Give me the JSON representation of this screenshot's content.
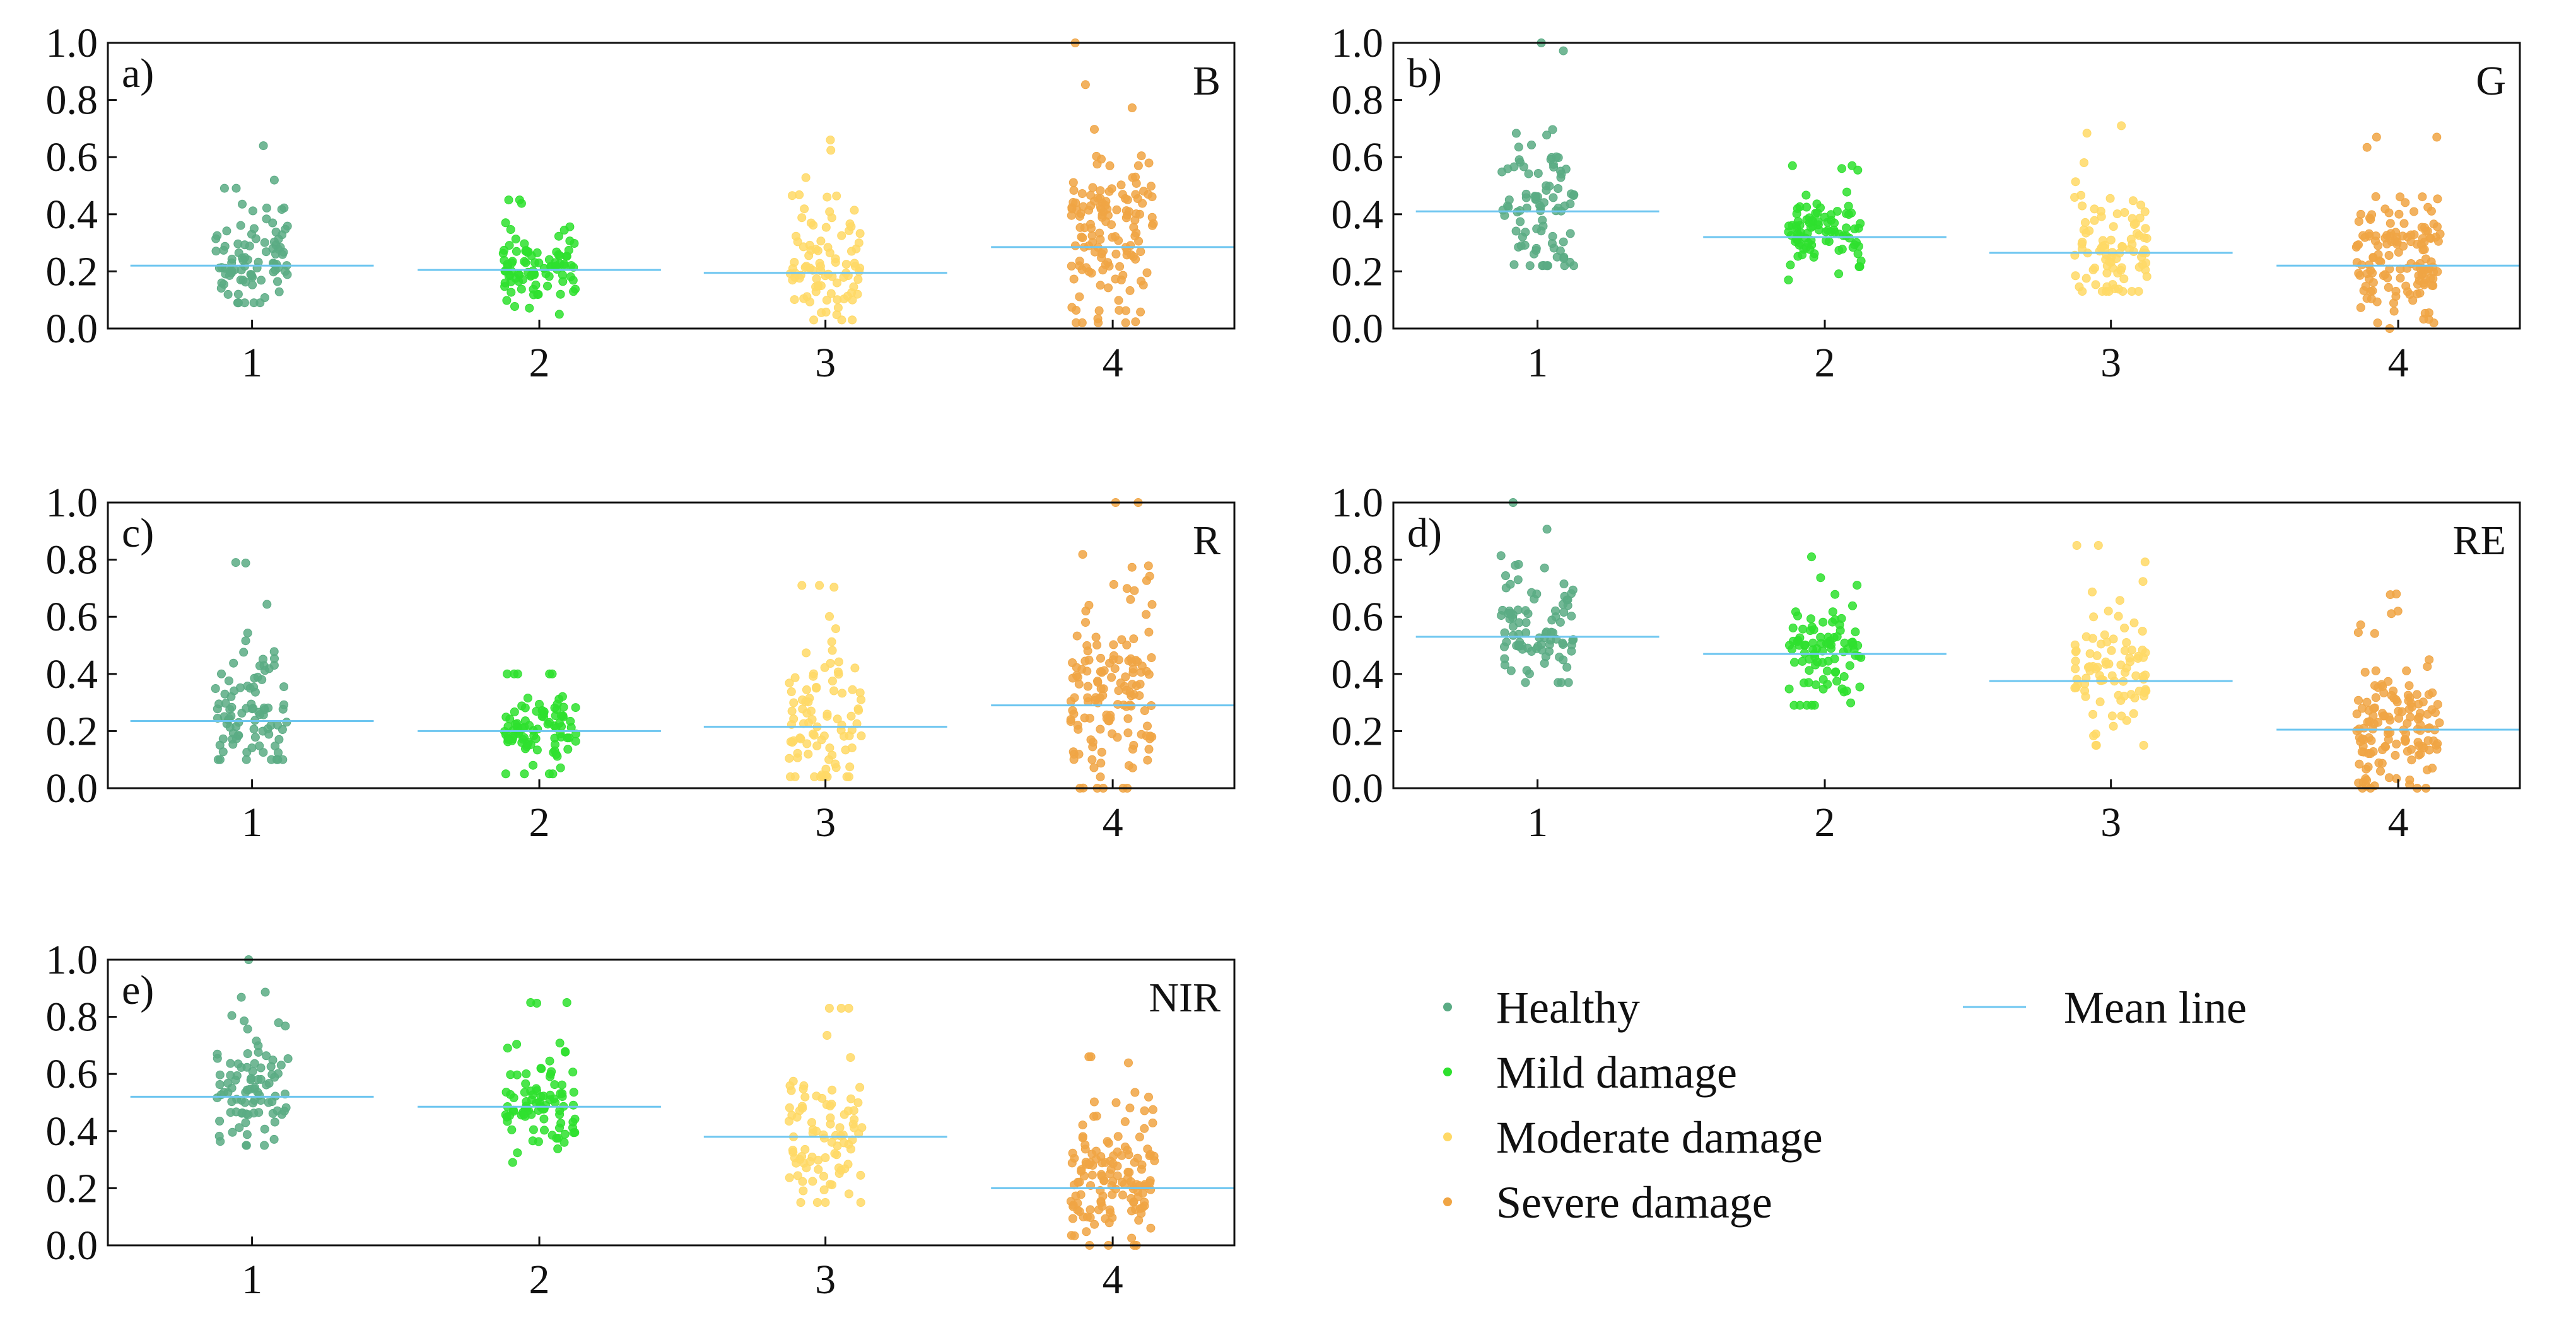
{
  "chart_data": [
    {
      "type": "scatter",
      "panel_label": "a)",
      "band": "B",
      "categories": [
        "1",
        "2",
        "3",
        "4"
      ],
      "ylim": [
        0,
        1.0
      ],
      "yticks": [
        "0.0",
        "0.2",
        "0.4",
        "0.6",
        "0.8",
        "1.0"
      ],
      "means": [
        0.22,
        0.205,
        0.195,
        0.285
      ],
      "spreads": [
        {
          "min": 0.09,
          "max": 0.64
        },
        {
          "min": 0.05,
          "max": 0.45
        },
        {
          "min": 0.03,
          "max": 0.66
        },
        {
          "min": 0.02,
          "max": 1.0
        }
      ]
    },
    {
      "type": "scatter",
      "panel_label": "b)",
      "band": "G",
      "categories": [
        "1",
        "2",
        "3",
        "4"
      ],
      "ylim": [
        0,
        1.0
      ],
      "yticks": [
        "0.0",
        "0.2",
        "0.4",
        "0.6",
        "0.8",
        "1.0"
      ],
      "means": [
        0.41,
        0.32,
        0.265,
        0.22
      ],
      "spreads": [
        {
          "min": 0.22,
          "max": 1.0
        },
        {
          "min": 0.17,
          "max": 0.57
        },
        {
          "min": 0.13,
          "max": 0.71
        },
        {
          "min": 0.0,
          "max": 0.67
        }
      ]
    },
    {
      "type": "scatter",
      "panel_label": "c)",
      "band": "R",
      "categories": [
        "1",
        "2",
        "3",
        "4"
      ],
      "ylim": [
        0,
        1.0
      ],
      "yticks": [
        "0.0",
        "0.2",
        "0.4",
        "0.6",
        "0.8",
        "1.0"
      ],
      "means": [
        0.235,
        0.2,
        0.215,
        0.29
      ],
      "spreads": [
        {
          "min": 0.1,
          "max": 0.79
        },
        {
          "min": 0.05,
          "max": 0.4
        },
        {
          "min": 0.04,
          "max": 0.71
        },
        {
          "min": 0.0,
          "max": 1.0
        }
      ]
    },
    {
      "type": "scatter",
      "panel_label": "d)",
      "band": "RE",
      "categories": [
        "1",
        "2",
        "3",
        "4"
      ],
      "ylim": [
        0,
        1.0
      ],
      "yticks": [
        "0.0",
        "0.2",
        "0.4",
        "0.6",
        "0.8",
        "1.0"
      ],
      "means": [
        0.53,
        0.47,
        0.375,
        0.205
      ],
      "spreads": [
        {
          "min": 0.37,
          "max": 1.0
        },
        {
          "min": 0.29,
          "max": 0.81
        },
        {
          "min": 0.15,
          "max": 0.85
        },
        {
          "min": 0.0,
          "max": 0.68
        }
      ]
    },
    {
      "type": "scatter",
      "panel_label": "e)",
      "band": "NIR",
      "categories": [
        "1",
        "2",
        "3",
        "4"
      ],
      "ylim": [
        0,
        1.0
      ],
      "yticks": [
        "0.0",
        "0.2",
        "0.4",
        "0.6",
        "0.8",
        "1.0"
      ],
      "means": [
        0.52,
        0.485,
        0.38,
        0.2
      ],
      "spreads": [
        {
          "min": 0.35,
          "max": 1.0
        },
        {
          "min": 0.29,
          "max": 0.85
        },
        {
          "min": 0.15,
          "max": 0.83
        },
        {
          "min": 0.0,
          "max": 0.66
        }
      ]
    }
  ],
  "series": [
    {
      "name": "Healthy",
      "color": "#5aab84"
    },
    {
      "name": "Mild damage",
      "color": "#2ee02e"
    },
    {
      "name": "Moderate damage",
      "color": "#ffd966"
    },
    {
      "name": "Severe damage",
      "color": "#f0a544"
    }
  ],
  "mean_line": {
    "name": "Mean line",
    "color": "#6ec6f0"
  },
  "legend": {
    "healthy": "Healthy",
    "mild": "Mild damage",
    "moderate": "Moderate damage",
    "severe": "Severe damage",
    "mean": "Mean line"
  }
}
